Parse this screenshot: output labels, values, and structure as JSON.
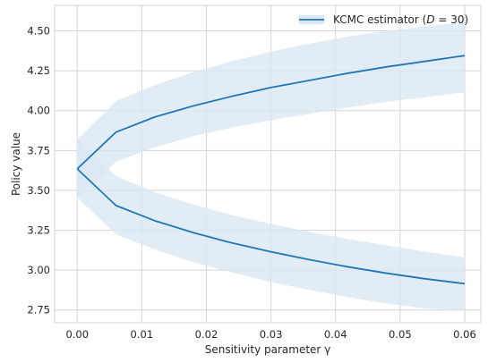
{
  "chart_data": {
    "type": "line",
    "xlabel": "Sensitivity parameter γ",
    "ylabel": "Policy value",
    "xlim": [
      -0.0035,
      0.0625
    ],
    "ylim": [
      2.67,
      4.66
    ],
    "x_ticks": [
      0.0,
      0.01,
      0.02,
      0.03,
      0.04,
      0.05,
      0.06
    ],
    "x_tick_labels": [
      "0.00",
      "0.01",
      "0.02",
      "0.03",
      "0.04",
      "0.05",
      "0.06"
    ],
    "y_ticks": [
      2.75,
      3.0,
      3.25,
      3.5,
      3.75,
      4.0,
      4.25,
      4.5
    ],
    "y_tick_labels": [
      "2.75",
      "3.00",
      "3.25",
      "3.50",
      "3.75",
      "4.00",
      "4.25",
      "4.50"
    ],
    "grid": true,
    "legend_position": "top-right",
    "legend": [
      {
        "pre": "KCMC estimator (",
        "var": "D",
        "post": " = 30)"
      }
    ],
    "colors": {
      "line": "#1f77b4",
      "band": "#dbe7f2",
      "grid": "#d4d4d4"
    },
    "x": [
      0.0,
      0.006,
      0.012,
      0.018,
      0.024,
      0.03,
      0.036,
      0.042,
      0.048,
      0.054,
      0.06
    ],
    "series": [
      {
        "values": [
          3.635,
          3.865,
          3.96,
          4.03,
          4.09,
          4.145,
          4.19,
          4.235,
          4.275,
          4.31,
          4.345
        ],
        "band_lower": [
          3.45,
          3.68,
          3.77,
          3.84,
          3.895,
          3.94,
          3.98,
          4.02,
          4.055,
          4.085,
          4.115
        ],
        "band_upper": [
          3.82,
          4.06,
          4.16,
          4.24,
          4.31,
          4.37,
          4.42,
          4.465,
          4.5,
          4.53,
          4.555
        ]
      },
      {
        "values": [
          3.635,
          3.405,
          3.31,
          3.235,
          3.17,
          3.115,
          3.065,
          3.02,
          2.98,
          2.945,
          2.915
        ],
        "band_lower": [
          3.455,
          3.225,
          3.13,
          3.05,
          2.985,
          2.925,
          2.875,
          2.83,
          2.79,
          2.76,
          2.75
        ],
        "band_upper": [
          3.82,
          3.59,
          3.49,
          3.41,
          3.345,
          3.29,
          3.24,
          3.195,
          3.155,
          3.115,
          3.08
        ]
      }
    ]
  }
}
